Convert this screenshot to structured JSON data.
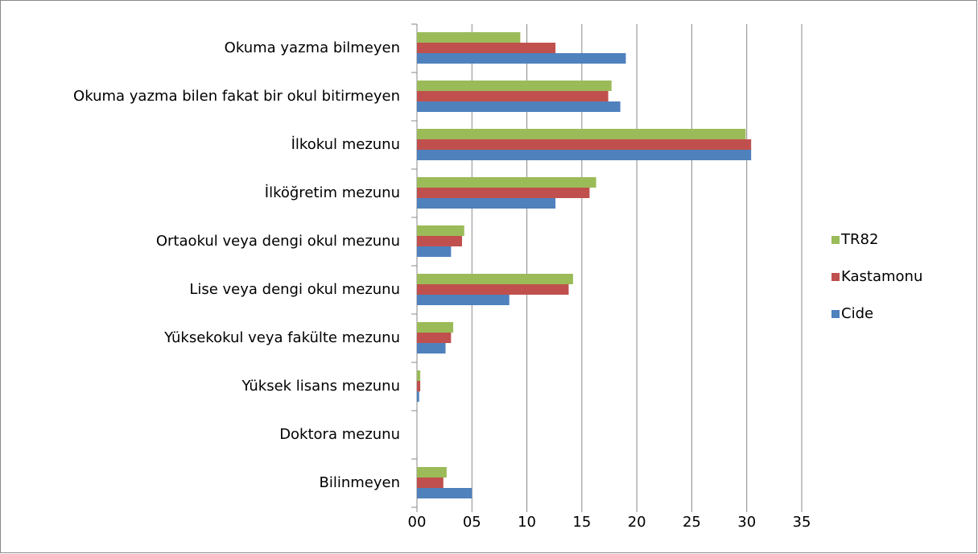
{
  "chart_data": {
    "type": "bar",
    "orientation": "horizontal",
    "categories": [
      "Okuma yazma bilmeyen",
      "Okuma yazma bilen fakat bir okul bitirmeyen",
      "İlkokul mezunu",
      "İlköğretim mezunu",
      "Ortaokul veya dengi okul mezunu",
      "Lise veya dengi okul mezunu",
      "Yüksekokul veya fakülte mezunu",
      "Yüksek lisans mezunu",
      "Doktora mezunu",
      "Bilinmeyen"
    ],
    "series": [
      {
        "name": "TR82",
        "color": "#9bbb59",
        "values": [
          9.4,
          17.7,
          29.9,
          16.3,
          4.3,
          14.2,
          3.3,
          0.3,
          0,
          2.7
        ]
      },
      {
        "name": "Kastamonu",
        "color": "#c0504d",
        "values": [
          12.6,
          17.4,
          30.4,
          15.7,
          4.1,
          13.8,
          3.1,
          0.3,
          0,
          2.4
        ]
      },
      {
        "name": "Cide",
        "color": "#4f81bd",
        "values": [
          19.0,
          18.5,
          30.4,
          12.6,
          3.1,
          8.4,
          2.6,
          0.2,
          0,
          5.0
        ]
      }
    ],
    "xlim": [
      0,
      35
    ],
    "xticks": [
      {
        "value": 0,
        "label": "00"
      },
      {
        "value": 5,
        "label": "05"
      },
      10,
      15,
      20,
      25,
      30,
      35
    ],
    "grid": true,
    "legend": "right"
  }
}
